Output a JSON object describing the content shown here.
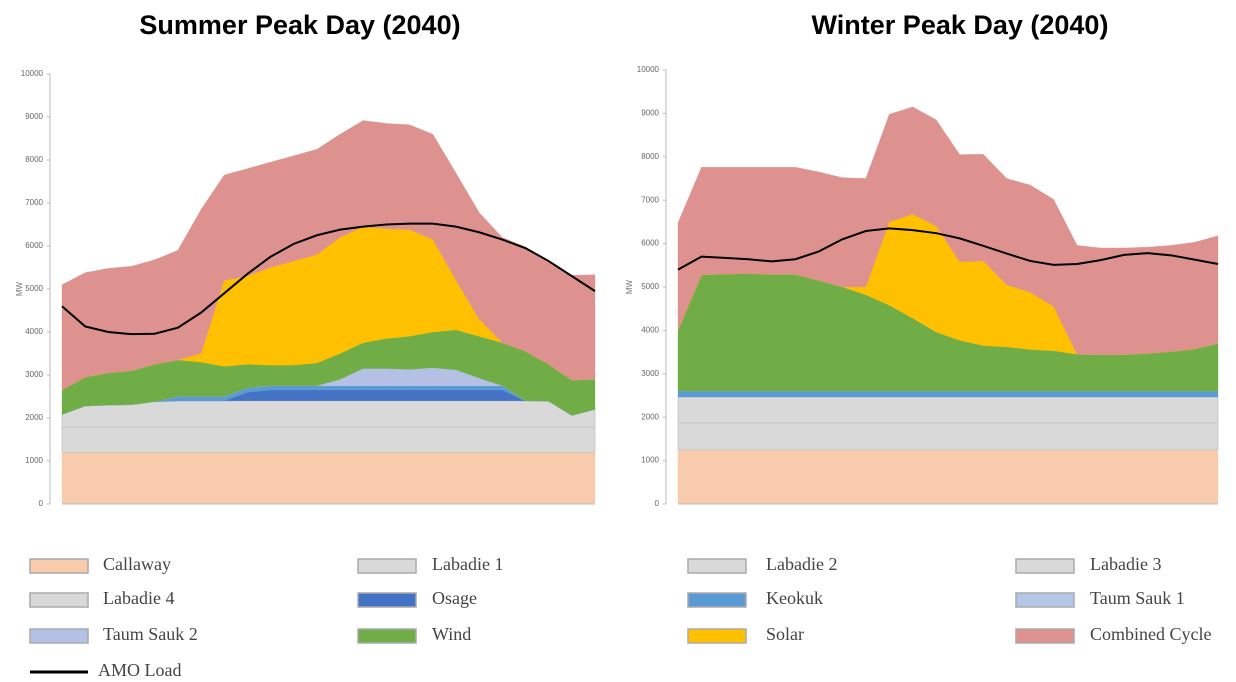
{
  "chart_data": [
    {
      "type": "area",
      "title": "Summer Peak Day (2040)",
      "y_label": "MW",
      "ylim": [
        0,
        10000
      ],
      "yticks": [
        0,
        1000,
        2000,
        3000,
        4000,
        5000,
        6000,
        7000,
        8000,
        9000,
        10000
      ],
      "series": [
        {
          "name": "Callaway",
          "color": "#f8cbad",
          "values": [
            1200,
            1200,
            1200,
            1200,
            1200,
            1200,
            1200,
            1200,
            1200,
            1200,
            1200,
            1200,
            1200,
            1200,
            1200,
            1200,
            1200,
            1200,
            1200,
            1200,
            1200,
            1200,
            1200,
            1200
          ]
        },
        {
          "name": "Labadie 1",
          "color": "#d9d9d9",
          "values": [
            590,
            590,
            590,
            590,
            590,
            590,
            590,
            590,
            590,
            590,
            590,
            590,
            590,
            590,
            590,
            590,
            590,
            590,
            590,
            590,
            590,
            590,
            590,
            590
          ]
        },
        {
          "name": "Labadie 2",
          "color": "#d9d9d9",
          "values": [
            0,
            0,
            0,
            0,
            0,
            0,
            0,
            0,
            0,
            0,
            0,
            0,
            0,
            0,
            0,
            0,
            0,
            0,
            0,
            0,
            0,
            0,
            0,
            0
          ]
        },
        {
          "name": "Labadie 3",
          "color": "#d9d9d9",
          "values": [
            0,
            0,
            0,
            0,
            0,
            0,
            0,
            0,
            0,
            0,
            0,
            0,
            0,
            0,
            0,
            0,
            0,
            0,
            0,
            0,
            0,
            0,
            0,
            0
          ]
        },
        {
          "name": "Labadie 4",
          "color": "#d9d9d9",
          "values": [
            290,
            490,
            510,
            520,
            590,
            610,
            610,
            610,
            610,
            610,
            610,
            610,
            610,
            610,
            610,
            610,
            610,
            610,
            610,
            610,
            610,
            600,
            270,
            410
          ]
        },
        {
          "name": "Osage",
          "color": "#4472c4",
          "values": [
            0,
            0,
            0,
            0,
            0,
            0,
            0,
            0,
            200,
            250,
            250,
            250,
            250,
            250,
            250,
            250,
            250,
            250,
            250,
            250,
            0,
            0,
            0,
            0
          ]
        },
        {
          "name": "Keokuk",
          "color": "#5b9bd5",
          "values": [
            0,
            0,
            0,
            0,
            0,
            100,
            100,
            100,
            100,
            100,
            100,
            100,
            100,
            100,
            100,
            100,
            100,
            100,
            100,
            100,
            0,
            0,
            0,
            0
          ]
        },
        {
          "name": "Taum Sauk 1",
          "color": "#b4c7e7",
          "values": [
            0,
            0,
            0,
            0,
            0,
            0,
            0,
            0,
            0,
            0,
            0,
            0,
            0,
            0,
            0,
            0,
            0,
            0,
            0,
            0,
            0,
            0,
            0,
            0
          ]
        },
        {
          "name": "Taum Sauk 2",
          "color": "#b4c0e4",
          "values": [
            0,
            0,
            0,
            0,
            0,
            0,
            0,
            0,
            0,
            0,
            0,
            0,
            150,
            400,
            400,
            380,
            420,
            370,
            180,
            0,
            0,
            0,
            0,
            0
          ]
        },
        {
          "name": "Wind",
          "color": "#70ad47",
          "values": [
            570,
            670,
            750,
            790,
            870,
            850,
            800,
            700,
            550,
            480,
            480,
            530,
            600,
            600,
            700,
            770,
            830,
            930,
            970,
            1000,
            1150,
            860,
            820,
            700
          ]
        },
        {
          "name": "Solar",
          "color": "#ffc000",
          "values": [
            0,
            0,
            0,
            0,
            0,
            0,
            200,
            2000,
            2050,
            2270,
            2420,
            2520,
            2700,
            2700,
            2550,
            2480,
            2150,
            1150,
            400,
            0,
            0,
            0,
            0,
            0
          ]
        },
        {
          "name": "Combined Cycle",
          "color": "#de928f",
          "values": [
            2450,
            2430,
            2430,
            2430,
            2430,
            2550,
            3350,
            2450,
            2500,
            2450,
            2450,
            2450,
            2400,
            2470,
            2450,
            2440,
            2450,
            2500,
            2480,
            2450,
            2430,
            2400,
            2440,
            2430
          ]
        },
        {
          "name": "AMO Load",
          "color": "#000000",
          "style": "line",
          "values": [
            4600,
            4130,
            4000,
            3950,
            3960,
            4100,
            4450,
            4900,
            5350,
            5750,
            6050,
            6250,
            6380,
            6450,
            6500,
            6520,
            6520,
            6450,
            6320,
            6150,
            5950,
            5650,
            5300,
            4950
          ]
        }
      ]
    },
    {
      "type": "area",
      "title": "Winter Peak Day (2040)",
      "y_label": "MW",
      "ylim": [
        0,
        10000
      ],
      "yticks": [
        0,
        1000,
        2000,
        3000,
        4000,
        5000,
        6000,
        7000,
        8000,
        9000,
        10000
      ],
      "series": [
        {
          "name": "Callaway",
          "color": "#f8cbad",
          "values": [
            1250,
            1250,
            1250,
            1250,
            1250,
            1250,
            1250,
            1250,
            1250,
            1250,
            1250,
            1250,
            1250,
            1250,
            1250,
            1250,
            1250,
            1250,
            1250,
            1250,
            1250,
            1250,
            1250,
            1250
          ]
        },
        {
          "name": "Labadie 1",
          "color": "#d9d9d9",
          "values": [
            0,
            0,
            0,
            0,
            0,
            0,
            0,
            0,
            0,
            0,
            0,
            0,
            0,
            0,
            0,
            0,
            0,
            0,
            0,
            0,
            0,
            0,
            0,
            0
          ]
        },
        {
          "name": "Labadie 2",
          "color": "#d9d9d9",
          "values": [
            620,
            620,
            620,
            620,
            620,
            620,
            620,
            620,
            620,
            620,
            620,
            620,
            620,
            620,
            620,
            620,
            620,
            620,
            620,
            620,
            620,
            620,
            620,
            620
          ]
        },
        {
          "name": "Labadie 3",
          "color": "#d9d9d9",
          "values": [
            600,
            600,
            600,
            600,
            600,
            600,
            600,
            600,
            600,
            600,
            600,
            600,
            600,
            600,
            600,
            600,
            600,
            600,
            600,
            600,
            600,
            600,
            600,
            600
          ]
        },
        {
          "name": "Labadie 4",
          "color": "#d9d9d9",
          "values": [
            0,
            0,
            0,
            0,
            0,
            0,
            0,
            0,
            0,
            0,
            0,
            0,
            0,
            0,
            0,
            0,
            0,
            0,
            0,
            0,
            0,
            0,
            0,
            0
          ]
        },
        {
          "name": "Osage",
          "color": "#4472c4",
          "values": [
            0,
            0,
            0,
            0,
            0,
            0,
            0,
            0,
            0,
            0,
            0,
            0,
            0,
            0,
            0,
            0,
            0,
            0,
            0,
            0,
            0,
            0,
            0,
            0
          ]
        },
        {
          "name": "Keokuk",
          "color": "#5b9bd5",
          "values": [
            130,
            130,
            130,
            130,
            130,
            130,
            130,
            130,
            130,
            130,
            130,
            130,
            130,
            130,
            130,
            130,
            130,
            130,
            130,
            130,
            130,
            130,
            130,
            130
          ]
        },
        {
          "name": "Taum Sauk 1",
          "color": "#b4c7e7",
          "values": [
            0,
            0,
            0,
            0,
            0,
            0,
            0,
            0,
            0,
            0,
            0,
            0,
            0,
            0,
            0,
            0,
            0,
            0,
            0,
            0,
            0,
            0,
            0,
            0
          ]
        },
        {
          "name": "Taum Sauk 2",
          "color": "#b4c0e4",
          "values": [
            0,
            0,
            0,
            0,
            0,
            0,
            0,
            0,
            0,
            0,
            0,
            0,
            0,
            0,
            0,
            0,
            0,
            0,
            0,
            0,
            0,
            0,
            0,
            0
          ]
        },
        {
          "name": "Wind",
          "color": "#70ad47",
          "values": [
            1400,
            2680,
            2700,
            2710,
            2690,
            2690,
            2550,
            2400,
            2220,
            1980,
            1680,
            1360,
            1170,
            1050,
            1020,
            960,
            930,
            850,
            840,
            840,
            870,
            910,
            970,
            1100
          ]
        },
        {
          "name": "Solar",
          "color": "#ffc000",
          "values": [
            0,
            0,
            0,
            0,
            0,
            0,
            0,
            0,
            180,
            1920,
            2400,
            2440,
            1810,
            1950,
            1430,
            1320,
            1020,
            0,
            0,
            0,
            0,
            0,
            0,
            0
          ]
        },
        {
          "name": "Combined Cycle",
          "color": "#de928f",
          "values": [
            2480,
            2480,
            2460,
            2450,
            2470,
            2470,
            2500,
            2520,
            2500,
            2480,
            2470,
            2450,
            2470,
            2460,
            2450,
            2470,
            2470,
            2510,
            2460,
            2460,
            2450,
            2450,
            2460,
            2480
          ]
        },
        {
          "name": "AMO Load",
          "color": "#000000",
          "style": "line",
          "values": [
            5400,
            5700,
            5670,
            5640,
            5590,
            5640,
            5820,
            6100,
            6290,
            6350,
            6310,
            6240,
            6120,
            5950,
            5770,
            5600,
            5510,
            5530,
            5620,
            5740,
            5780,
            5730,
            5630,
            5530
          ]
        }
      ]
    }
  ]
}
